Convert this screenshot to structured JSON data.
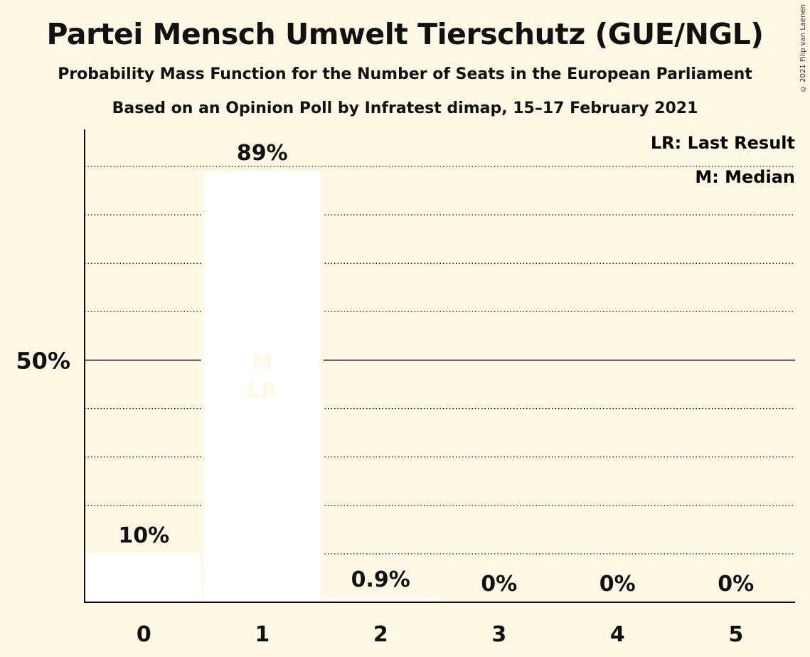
{
  "title": "Partei Mensch Umwelt Tierschutz (GUE/NGL)",
  "subtitle": "Probability Mass Function for the Number of Seats in the European Parliament",
  "subtitle2": "Based on an Opinion Poll by Infratest dimap, 15–17 February 2021",
  "copyright": "© 2021 Filip van Laenen",
  "legend": {
    "last_result": "LR: Last Result",
    "median": "M: Median"
  },
  "colors": {
    "background": "#fff8e5",
    "bar": "#ffffff",
    "bar_label_inside": "#fff8e5"
  },
  "chart_data": {
    "type": "bar",
    "categories": [
      "0",
      "1",
      "2",
      "3",
      "4",
      "5"
    ],
    "values": [
      10,
      89,
      0.9,
      0,
      0,
      0
    ],
    "value_labels": [
      "10%",
      "89%",
      "0.9%",
      "0%",
      "0%",
      "0%"
    ],
    "ylim": [
      0,
      100
    ],
    "yticks": [
      {
        "value": 50,
        "label": "50%"
      }
    ],
    "gridlines": [
      10,
      20,
      30,
      40,
      60,
      70,
      80,
      90
    ],
    "median_category": "1",
    "last_result_category": "1",
    "median_marker": "M",
    "last_result_marker": "LR",
    "legend_position": "top-right"
  }
}
